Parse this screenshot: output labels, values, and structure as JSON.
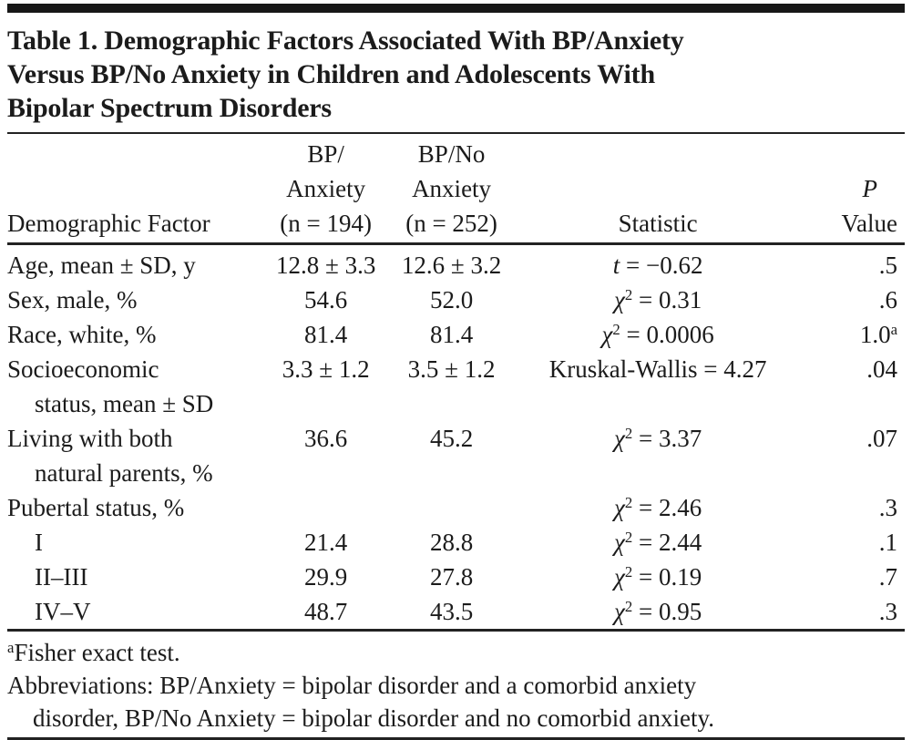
{
  "title_lines": [
    "Table 1. Demographic Factors Associated With BP/Anxiety",
    "Versus BP/No Anxiety in Children and Adolescents With",
    "Bipolar Spectrum Disorders"
  ],
  "header": {
    "factor": "Demographic Factor",
    "col_bp": {
      "l1": "BP/",
      "l2": "Anxiety",
      "l3": "(n = 194)"
    },
    "col_bpno": {
      "l1": "BP/No",
      "l2": "Anxiety",
      "l3": "(n = 252)"
    },
    "statistic": "Statistic",
    "p": {
      "l1": "P",
      "l2": "Value"
    }
  },
  "rows": [
    {
      "factor": "Age, mean ± SD, y",
      "factor2": "",
      "bp": "12.8 ± 3.3",
      "bpno": "12.6 ± 3.2",
      "sym_i": "t",
      "sym_r": "",
      "sup": "",
      "eq": " = −0.62",
      "p": ".5",
      "p_sup": ""
    },
    {
      "factor": "Sex, male, %",
      "factor2": "",
      "bp": "54.6",
      "bpno": "52.0",
      "sym_i": "χ",
      "sym_r": "",
      "sup": "2",
      "eq": " = 0.31",
      "p": ".6",
      "p_sup": ""
    },
    {
      "factor": "Race, white, %",
      "factor2": "",
      "bp": "81.4",
      "bpno": "81.4",
      "sym_i": "χ",
      "sym_r": "",
      "sup": "2",
      "eq": " = 0.0006",
      "p": "1.0",
      "p_sup": "a"
    },
    {
      "factor": "Socioeconomic",
      "factor2": "status, mean ± SD",
      "bp": "3.3 ± 1.2",
      "bpno": "3.5 ± 1.2",
      "sym_i": "",
      "sym_r": "Kruskal-Wallis",
      "sup": "",
      "eq": " = 4.27",
      "p": ".04",
      "p_sup": ""
    },
    {
      "factor": "Living with both",
      "factor2": "natural parents, %",
      "bp": "36.6",
      "bpno": "45.2",
      "sym_i": "χ",
      "sym_r": "",
      "sup": "2",
      "eq": " = 3.37",
      "p": ".07",
      "p_sup": ""
    },
    {
      "factor": "Pubertal status, %",
      "factor2": "",
      "bp": "",
      "bpno": "",
      "sym_i": "χ",
      "sym_r": "",
      "sup": "2",
      "eq": " = 2.46",
      "p": ".3",
      "p_sup": ""
    },
    {
      "factor": "I",
      "factor2": "",
      "bp": "21.4",
      "bpno": "28.8",
      "sym_i": "χ",
      "sym_r": "",
      "sup": "2",
      "eq": " = 2.44",
      "p": ".1",
      "p_sup": ""
    },
    {
      "factor": "II–III",
      "factor2": "",
      "bp": "29.9",
      "bpno": "27.8",
      "sym_i": "χ",
      "sym_r": "",
      "sup": "2",
      "eq": " = 0.19",
      "p": ".7",
      "p_sup": ""
    },
    {
      "factor": "IV–V",
      "factor2": "",
      "bp": "48.7",
      "bpno": "43.5",
      "sym_i": "χ",
      "sym_r": "",
      "sup": "2",
      "eq": " = 0.95",
      "p": ".3",
      "p_sup": ""
    }
  ],
  "footnotes": {
    "fisher_sup": "a",
    "fisher": "Fisher exact test.",
    "abbrev_line1": "Abbreviations: BP/Anxiety = bipolar disorder and a comorbid anxiety",
    "abbrev_line2": "disorder, BP/No Anxiety = bipolar disorder and no comorbid anxiety."
  },
  "colors": {
    "text": "#1b1b1b",
    "rule": "#222222",
    "bottom_rule_light": "#9a9a9a",
    "background": "#ffffff"
  }
}
